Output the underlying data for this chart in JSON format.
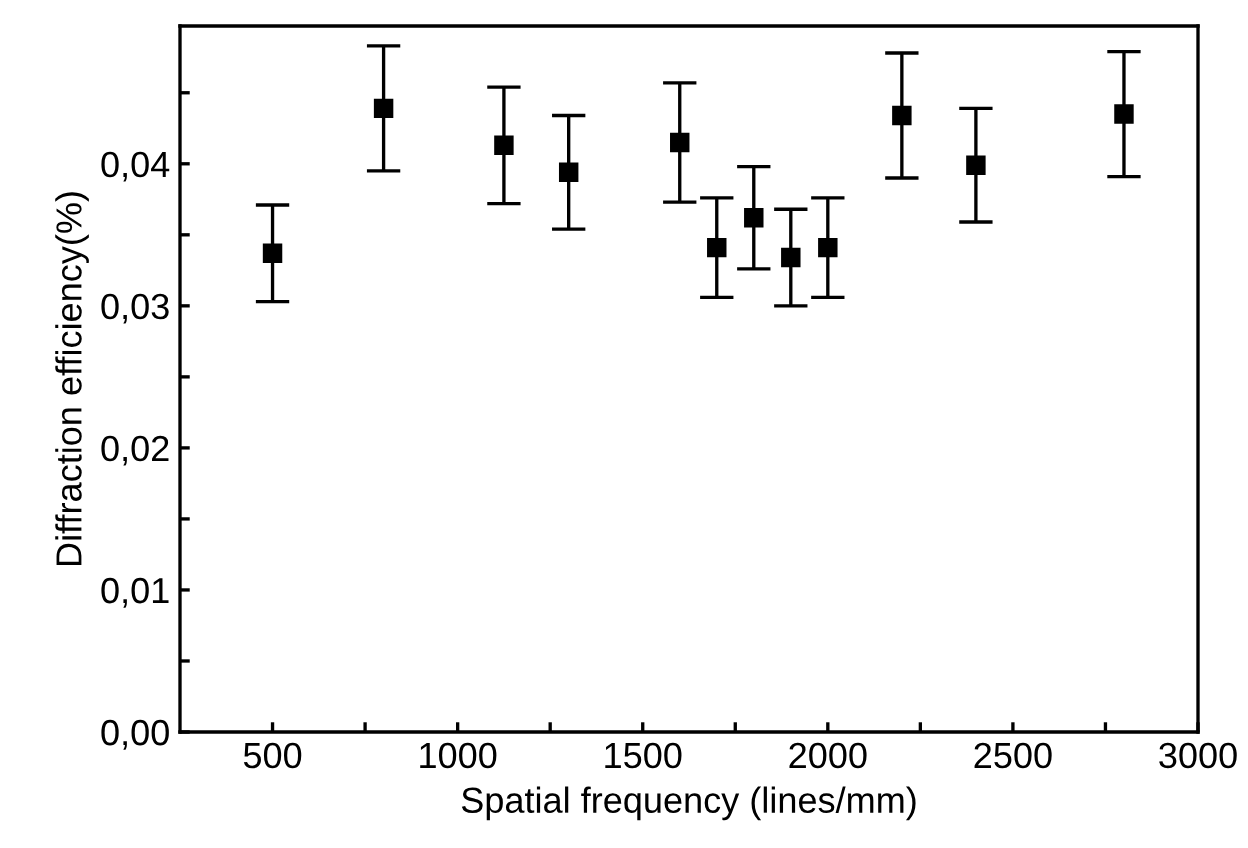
{
  "chart_data": {
    "type": "scatter",
    "xlabel": "Spatial frequency (lines/mm)",
    "ylabel": "Diffraction efficiency(%)",
    "x": [
      500,
      800,
      1125,
      1300,
      1600,
      1700,
      1800,
      1900,
      2000,
      2200,
      2400,
      2800
    ],
    "values": [
      0.0337,
      0.0439,
      0.0413,
      0.0394,
      0.0415,
      0.0341,
      0.0362,
      0.0334,
      0.0341,
      0.0434,
      0.0399,
      0.0435
    ],
    "errors": [
      0.0034,
      0.0044,
      0.0041,
      0.004,
      0.0042,
      0.0035,
      0.0036,
      0.0034,
      0.0035,
      0.0044,
      0.004,
      0.0044
    ],
    "color": "#000000",
    "marker": "square",
    "xlim": [
      250,
      3000
    ],
    "ylim": [
      0,
      0.0497
    ],
    "xticks": [
      {
        "value": 500,
        "label": "500"
      },
      {
        "value": 750,
        "label": null
      },
      {
        "value": 1000,
        "label": "1000"
      },
      {
        "value": 1250,
        "label": null
      },
      {
        "value": 1500,
        "label": "1500"
      },
      {
        "value": 1750,
        "label": null
      },
      {
        "value": 2000,
        "label": "2000"
      },
      {
        "value": 2250,
        "label": null
      },
      {
        "value": 2500,
        "label": "2500"
      },
      {
        "value": 2750,
        "label": null
      },
      {
        "value": 3000,
        "label": "3000"
      }
    ],
    "yticks": [
      {
        "value": 0,
        "label": "0,00"
      },
      {
        "value": 0.005,
        "label": null
      },
      {
        "value": 0.01,
        "label": "0,01"
      },
      {
        "value": 0.015,
        "label": null
      },
      {
        "value": 0.02,
        "label": "0,02"
      },
      {
        "value": 0.025,
        "label": null
      },
      {
        "value": 0.03,
        "label": "0,03"
      },
      {
        "value": 0.035,
        "label": null
      },
      {
        "value": 0.04,
        "label": "0,04"
      },
      {
        "value": 0.045,
        "label": null
      }
    ],
    "grid": false,
    "legend": false
  }
}
